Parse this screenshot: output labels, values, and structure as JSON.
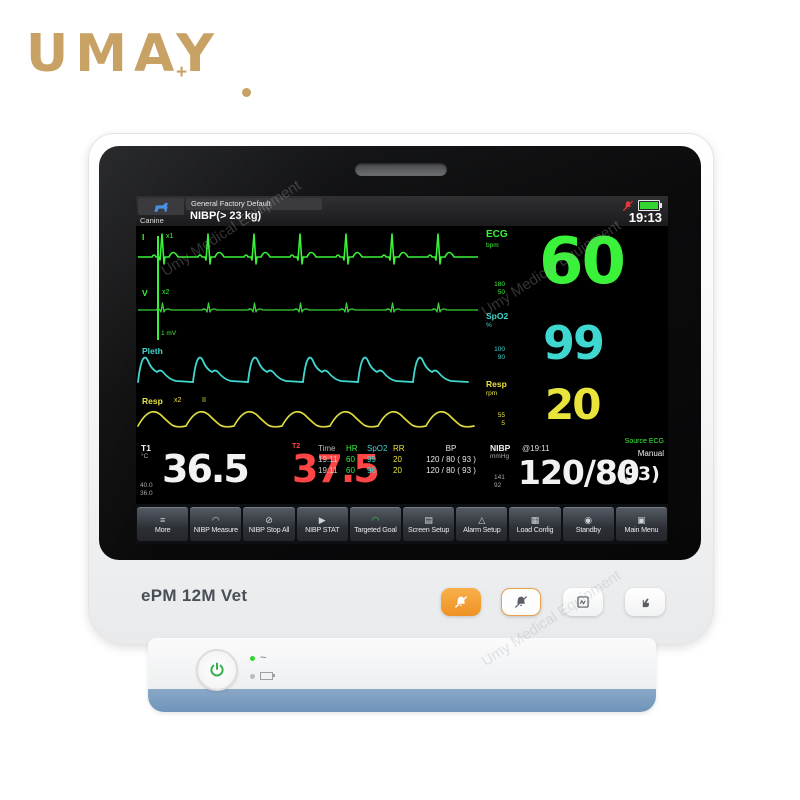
{
  "brand": {
    "logo": "UMAY",
    "watermark": "Umy Medical Equipment"
  },
  "topbar": {
    "patient_type": "Canine",
    "profile": "General Factory Default",
    "nibp_size": "NIBP(> 23 kg)",
    "time": "19:13"
  },
  "waves": {
    "ecg1": {
      "lead": "I",
      "gain": "x1"
    },
    "ecg2": {
      "lead": "V",
      "gain": "x2"
    },
    "pleth": {
      "label": "Pleth"
    },
    "resp": {
      "label": "Resp",
      "gain": "x2",
      "lead": "II"
    },
    "cal": "1 mV"
  },
  "vitals": {
    "ecg": {
      "label": "ECG",
      "unit": "bpm",
      "value": "60",
      "hi": "180",
      "lo": "50"
    },
    "spo2": {
      "label": "SpO2",
      "unit": "%",
      "value": "99",
      "hi": "100",
      "lo": "90"
    },
    "resp": {
      "label": "Resp",
      "unit": "rpm",
      "value": "20",
      "hi": "55",
      "lo": "5",
      "source": "Source ECG"
    },
    "t1": {
      "label": "T1",
      "unit": "°C",
      "value": "36.5",
      "hi": "40.0",
      "lo": "36.0"
    },
    "t2": {
      "label": "T2",
      "value": "37.5"
    },
    "nibp": {
      "label": "NIBP",
      "unit": "mmHg",
      "at": "@19:11",
      "mode": "Manual",
      "value": "120/80",
      "map": "(93)",
      "hi": "141",
      "lo": "92"
    }
  },
  "trend": {
    "headers": [
      "Time",
      "HR",
      "SpO2",
      "RR",
      "BP"
    ],
    "rows": [
      [
        "19:11",
        "60",
        "99",
        "20",
        "120 / 80 ( 93 )"
      ],
      [
        "19:11",
        "60",
        "96",
        "20",
        "120 / 80 ( 93 )"
      ]
    ]
  },
  "menu": [
    {
      "label": "More",
      "icon": "≡"
    },
    {
      "label": "NIBP Measure",
      "icon": "◠"
    },
    {
      "label": "NIBP Stop All",
      "icon": "⊘"
    },
    {
      "label": "NIBP STAT",
      "icon": "▶"
    },
    {
      "label": "Targeted Goal",
      "icon": "◠"
    },
    {
      "label": "Screen Setup",
      "icon": "▤"
    },
    {
      "label": "Alarm Setup",
      "icon": "△"
    },
    {
      "label": "Load Config",
      "icon": "▦"
    },
    {
      "label": "Standby",
      "icon": "◉"
    },
    {
      "label": "Main Menu",
      "icon": "▣"
    }
  ],
  "device": {
    "model": "ePM 12M Vet",
    "ac": "~"
  },
  "colors": {
    "ecg": "#3af23a",
    "spo2": "#3fd8d0",
    "resp": "#e8e43c",
    "temp_alarm": "#ff4545",
    "accent_orange": "#f0a030",
    "base_blue": "#7e9fc1"
  }
}
